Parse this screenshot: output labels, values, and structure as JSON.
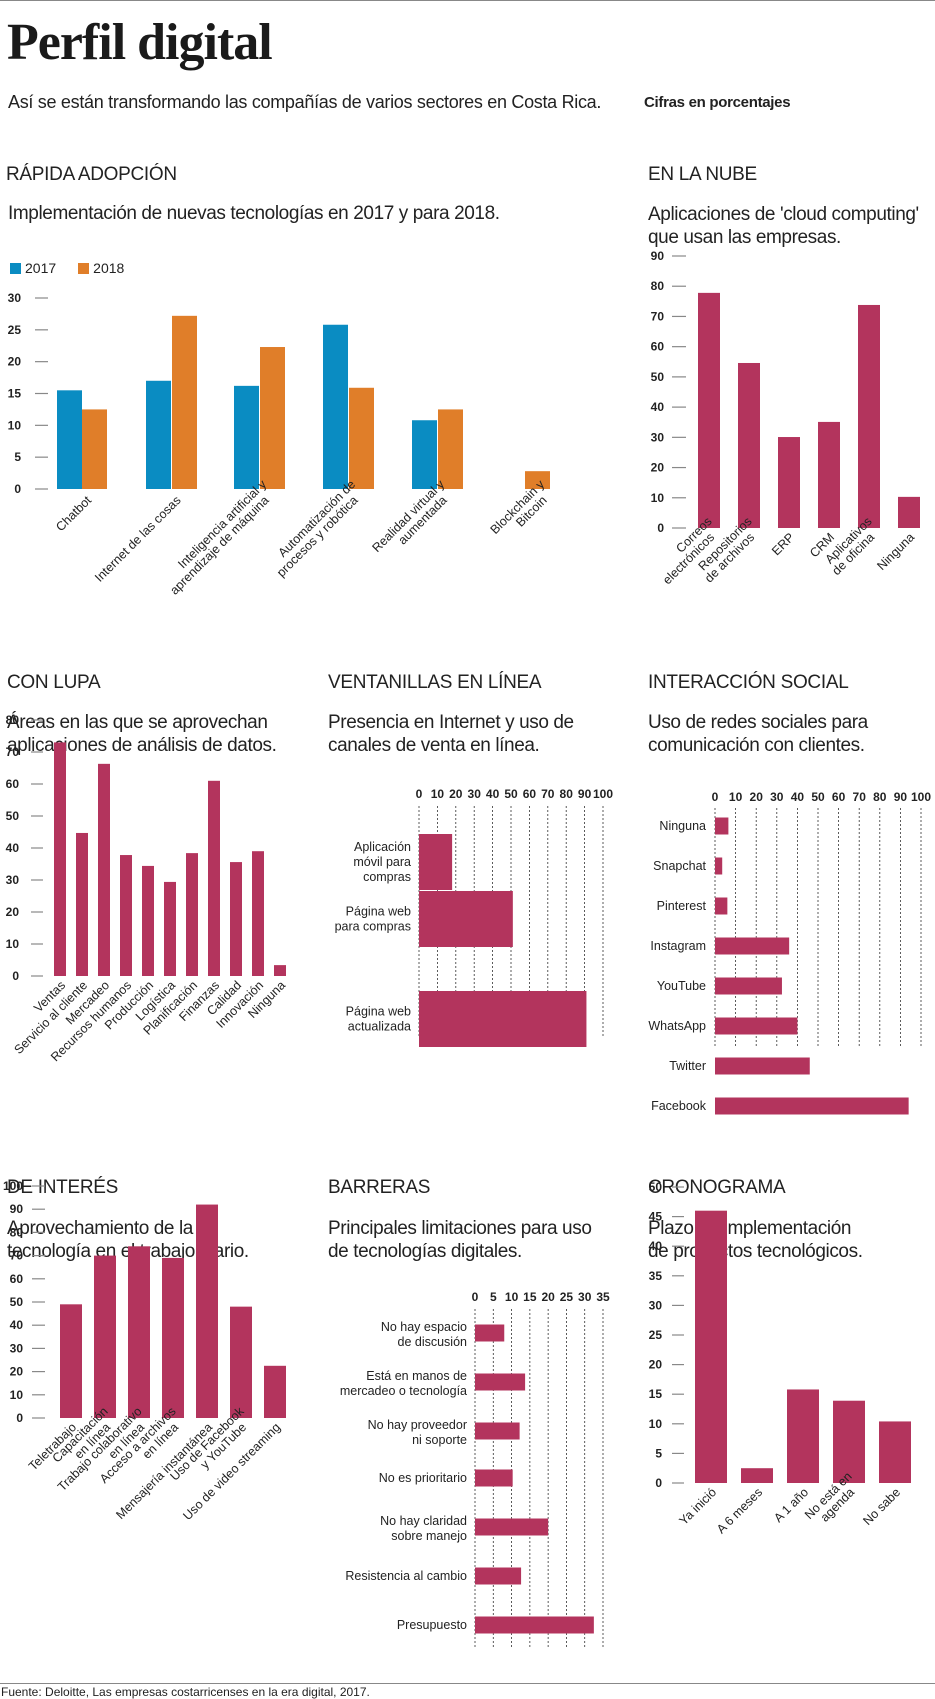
{
  "header": {
    "title": "Perfil digital",
    "subtitle": "Así se están transformando las compañías de varios sectores en Costa Rica.",
    "unit_note": "Cifras en porcentajes"
  },
  "colors": {
    "blue_2017": "#0a8cc2",
    "orange_2018": "#e07e29",
    "crimson": "#b3345d",
    "axis_tick": "#888888",
    "grid_dotted": "#333333"
  },
  "sections": {
    "rapida": {
      "title": "RÁPIDA ADOPCIÓN",
      "desc": [
        "Implementación de nuevas tecnologías en 2017 y para 2018."
      ]
    },
    "nube": {
      "title": "EN LA NUBE",
      "desc": [
        "Aplicaciones de 'cloud  computing'",
        "que usan las empresas."
      ]
    },
    "lupa": {
      "title": "CON LUPA",
      "desc": [
        "Áreas en las que se aprovechan",
        "aplicaciones  de análisis de datos."
      ]
    },
    "ventanillas": {
      "title": "VENTANILLAS EN LÍNEA",
      "desc": [
        "Presencia en Internet y uso de",
        "canales de venta en línea."
      ]
    },
    "social": {
      "title": "INTERACCIÓN SOCIAL",
      "desc": [
        "Uso de redes sociales para",
        "comunicación con clientes."
      ]
    },
    "interes": {
      "title": "DE INTERÉS",
      "desc": [
        "Aprovechamiento de la",
        "tecnología en el trabajo diario."
      ]
    },
    "barreras": {
      "title": "BARRERAS",
      "desc": [
        "Principales limitaciones para uso",
        "de tecnologías digitales."
      ]
    },
    "cronograma": {
      "title": "CRONOGRAMA",
      "desc": [
        "Plazo de implementación",
        "de proyectos tecnológicos."
      ]
    }
  },
  "legend": {
    "items": [
      {
        "label": "2017",
        "color": "#0a8cc2"
      },
      {
        "label": "2018",
        "color": "#e07e29"
      }
    ]
  },
  "footer": {
    "source": "Fuente: Deloitte, Las empresas costarricenses en la era digital, 2017."
  },
  "chart_data": [
    {
      "id": "rapida",
      "type": "bar",
      "title": "Implementación de nuevas tecnologías en 2017 y para 2018.",
      "categories": [
        [
          "Chatbot"
        ],
        [
          "Internet de las cosas"
        ],
        [
          "Inteligencia artificial y",
          "aprendizaje de máquina"
        ],
        [
          "Automatización de",
          "procesos y robótica"
        ],
        [
          "Realidad virtual y",
          "aumentada"
        ],
        [
          "Blockchain y",
          "Bitcoin"
        ]
      ],
      "series": [
        {
          "name": "2017",
          "color": "#0a8cc2",
          "values": [
            15.5,
            17,
            16.2,
            25.8,
            10.8,
            null
          ]
        },
        {
          "name": "2018",
          "color": "#e07e29",
          "values": [
            12.5,
            27.2,
            22.3,
            15.9,
            12.5,
            2.8
          ]
        }
      ],
      "yticks": [
        0,
        5,
        10,
        15,
        20,
        25,
        30
      ],
      "ylim": [
        0,
        30
      ],
      "xlabel": "",
      "ylabel": "",
      "legend": "top-left",
      "grid": false
    },
    {
      "id": "nube",
      "type": "bar",
      "title": "Aplicaciones de 'cloud computing' que usan las empresas.",
      "categories": [
        [
          "Correos",
          "electrónicos"
        ],
        [
          "Repositorios",
          "de archivos"
        ],
        [
          "ERP"
        ],
        [
          "CRM"
        ],
        [
          "Aplicativos",
          "de oficina"
        ],
        [
          "Ninguna"
        ]
      ],
      "values": [
        77.8,
        54.6,
        30.1,
        35.1,
        73.8,
        10.3
      ],
      "yticks": [
        0,
        10,
        20,
        30,
        40,
        50,
        60,
        70,
        80,
        90
      ],
      "ylim": [
        0,
        90
      ],
      "grid": false
    },
    {
      "id": "lupa",
      "type": "bar",
      "title": "Áreas en las que se aprovechan aplicaciones de análisis de datos.",
      "categories": [
        [
          "Ventas"
        ],
        [
          "Servicio al cliente"
        ],
        [
          "Mercadeo"
        ],
        [
          "Recursos humanos"
        ],
        [
          "Producción"
        ],
        [
          "Logística"
        ],
        [
          "Planificación"
        ],
        [
          "Finanzas"
        ],
        [
          "Calidad"
        ],
        [
          "Innovación"
        ],
        [
          "Ninguna"
        ]
      ],
      "values": [
        73,
        44.7,
        66.3,
        37.8,
        34.4,
        29.4,
        38.4,
        61,
        35.6,
        39,
        3.4
      ],
      "yticks": [
        0,
        10,
        20,
        30,
        40,
        50,
        60,
        70,
        80
      ],
      "ylim": [
        0,
        80
      ],
      "grid": false
    },
    {
      "id": "ventanillas",
      "type": "bar",
      "orientation": "horizontal",
      "title": "Presencia en Internet y uso de canales de venta en línea.",
      "categories": [
        [
          "Aplicación",
          "móvil para",
          "compras"
        ],
        [
          "Página web",
          "para compras"
        ],
        [
          "Página web",
          "actualizada"
        ]
      ],
      "values": [
        18,
        51,
        91
      ],
      "xticks": [
        0,
        10,
        20,
        30,
        40,
        50,
        60,
        70,
        80,
        90,
        100
      ],
      "xlim": [
        0,
        100
      ],
      "grid": true
    },
    {
      "id": "social",
      "type": "bar",
      "orientation": "horizontal",
      "title": "Uso de redes sociales para comunicación con clientes.",
      "categories": [
        [
          "Ninguna"
        ],
        [
          "Snapchat"
        ],
        [
          "Pinterest"
        ],
        [
          "Instagram"
        ],
        [
          "YouTube"
        ],
        [
          "WhatsApp"
        ],
        [
          "Twitter"
        ],
        [
          "Facebook"
        ]
      ],
      "values": [
        6.5,
        3.5,
        6,
        36,
        32.5,
        40,
        46,
        94
      ],
      "xticks": [
        0,
        10,
        20,
        30,
        40,
        50,
        60,
        70,
        80,
        90,
        100
      ],
      "xlim": [
        0,
        100
      ],
      "grid": true
    },
    {
      "id": "interes",
      "type": "bar",
      "title": "Aprovechamiento de la tecnología en el trabajo diario.",
      "categories": [
        [
          "Teletrabajo"
        ],
        [
          "Capacitación",
          "en línea"
        ],
        [
          "Trabajo colaborativo",
          "en línea"
        ],
        [
          "Acceso a archivos",
          "en línea"
        ],
        [
          "Mensajería instantánea"
        ],
        [
          "Uso de Facebook",
          "y YouTube"
        ],
        [
          "Uso de video streaming"
        ]
      ],
      "values": [
        49,
        70,
        74,
        69,
        92,
        48,
        22.5
      ],
      "yticks": [
        0,
        10,
        20,
        30,
        40,
        50,
        60,
        70,
        80,
        90,
        100
      ],
      "ylim": [
        0,
        100
      ],
      "grid": false
    },
    {
      "id": "barreras",
      "type": "bar",
      "orientation": "horizontal",
      "title": "Principales limitaciones para uso de tecnologías digitales.",
      "categories": [
        [
          "No hay espacio",
          "de discusión"
        ],
        [
          "Está en manos de",
          "mercadeo o tecnología"
        ],
        [
          "No hay proveedor",
          "ni soporte"
        ],
        [
          "No es prioritario"
        ],
        [
          "No hay claridad",
          "sobre manejo"
        ],
        [
          "Resistencia al cambio"
        ],
        [
          "Presupuesto"
        ]
      ],
      "values": [
        8,
        13.7,
        12.2,
        10.3,
        20,
        12.6,
        32.5
      ],
      "xticks": [
        0,
        5,
        10,
        15,
        20,
        25,
        30,
        35
      ],
      "xlim": [
        0,
        35
      ],
      "grid": true
    },
    {
      "id": "cronograma",
      "type": "bar",
      "title": "Plazo de implementación de proyectos tecnológicos.",
      "categories": [
        [
          "Ya inició"
        ],
        [
          "A 6 meses"
        ],
        [
          "A 1 año"
        ],
        [
          "No está en",
          "agenda"
        ],
        [
          "No sabe"
        ]
      ],
      "values": [
        46,
        2.5,
        15.8,
        13.9,
        10.4
      ],
      "yticks": [
        0,
        5,
        10,
        15,
        20,
        25,
        30,
        35,
        40,
        45,
        50
      ],
      "ylim": [
        0,
        50
      ],
      "grid": false
    }
  ]
}
